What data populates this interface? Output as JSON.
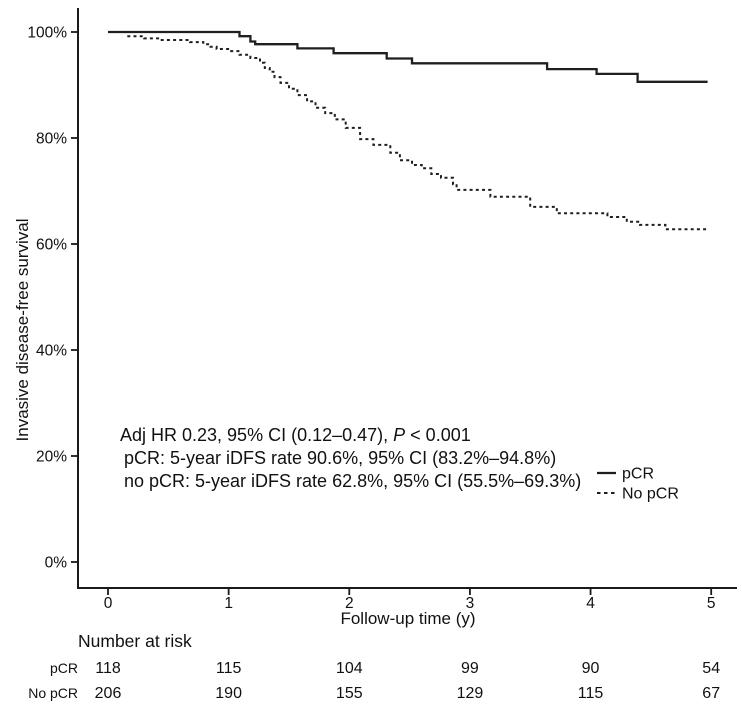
{
  "colors": {
    "ink": "#1a1a1a",
    "background": "#ffffff"
  },
  "chart_data": {
    "type": "line",
    "subtype": "kaplan-meier-step",
    "title": "",
    "xlabel": "Follow-up time (y)",
    "ylabel": "Invasive disease-free survival",
    "xlim": [
      0,
      5
    ],
    "ylim": [
      0,
      105
    ],
    "grid": false,
    "x_ticks": [
      0,
      1,
      2,
      3,
      4,
      5
    ],
    "y_ticks": [
      {
        "value": 0,
        "label": "0%"
      },
      {
        "value": 20,
        "label": "20%"
      },
      {
        "value": 40,
        "label": "40%"
      },
      {
        "value": 60,
        "label": "60%"
      },
      {
        "value": 80,
        "label": "80%"
      },
      {
        "value": 100,
        "label": "100%"
      }
    ],
    "series": [
      {
        "name": "pCR",
        "line_style": "solid",
        "color": "#1f1f1f",
        "five_year_rate": "90.6%",
        "steps": [
          [
            0,
            100
          ],
          [
            1.09,
            99.2
          ],
          [
            1.18,
            98.2
          ],
          [
            1.22,
            97.7
          ],
          [
            1.57,
            96.9
          ],
          [
            1.87,
            96.0
          ],
          [
            2.31,
            95.0
          ],
          [
            2.52,
            94.1
          ],
          [
            3.64,
            93.0
          ],
          [
            4.05,
            92.1
          ],
          [
            4.39,
            90.6
          ],
          [
            4.97,
            90.6
          ]
        ]
      },
      {
        "name": "No pCR",
        "line_style": "dashed",
        "color": "#1f1f1f",
        "five_year_rate": "62.8%",
        "steps": [
          [
            0.16,
            99.2
          ],
          [
            0.3,
            98.8
          ],
          [
            0.43,
            98.5
          ],
          [
            0.68,
            98.1
          ],
          [
            0.79,
            97.7
          ],
          [
            0.85,
            97.2
          ],
          [
            0.9,
            96.8
          ],
          [
            1.01,
            96.4
          ],
          [
            1.09,
            95.7
          ],
          [
            1.18,
            95.1
          ],
          [
            1.26,
            94.2
          ],
          [
            1.3,
            93.2
          ],
          [
            1.34,
            92.5
          ],
          [
            1.38,
            91.5
          ],
          [
            1.43,
            90.4
          ],
          [
            1.5,
            89.3
          ],
          [
            1.57,
            88.1
          ],
          [
            1.65,
            86.9
          ],
          [
            1.72,
            85.7
          ],
          [
            1.8,
            84.7
          ],
          [
            1.88,
            83.5
          ],
          [
            1.97,
            81.9
          ],
          [
            2.09,
            79.8
          ],
          [
            2.2,
            78.7
          ],
          [
            2.34,
            77.2
          ],
          [
            2.42,
            75.8
          ],
          [
            2.52,
            74.9
          ],
          [
            2.6,
            74.3
          ],
          [
            2.68,
            73.2
          ],
          [
            2.76,
            72.5
          ],
          [
            2.86,
            71.3
          ],
          [
            2.89,
            70.2
          ],
          [
            3.17,
            68.9
          ],
          [
            3.5,
            67.0
          ],
          [
            3.72,
            65.8
          ],
          [
            4.14,
            65.1
          ],
          [
            4.3,
            64.2
          ],
          [
            4.41,
            63.6
          ],
          [
            4.62,
            62.8
          ],
          [
            4.97,
            62.8
          ]
        ]
      }
    ],
    "legend": {
      "position": "right-middle",
      "entries": [
        {
          "label": "pCR",
          "style": "solid"
        },
        {
          "label": "No pCR",
          "style": "dashed"
        }
      ]
    },
    "annotations": {
      "lines": [
        {
          "pre": "Adj HR 0.23, 95% CI (0.12–0.47), ",
          "italic": "P",
          "post": " < 0.001"
        },
        {
          "pre": "pCR: 5-year iDFS rate 90.6%, 95% CI (83.2%–94.8%)",
          "italic": "",
          "post": ""
        },
        {
          "pre": "no pCR: 5-year iDFS rate 62.8%, 95% CI (55.5%–69.3%)",
          "italic": "",
          "post": ""
        }
      ]
    }
  },
  "risk_table": {
    "title": "Number at risk",
    "time_points": [
      0,
      1,
      2,
      3,
      4,
      5
    ],
    "rows": [
      {
        "label": "pCR",
        "values": [
          "118",
          "115",
          "104",
          "99",
          "90",
          "54"
        ]
      },
      {
        "label": "No pCR",
        "values": [
          "206",
          "190",
          "155",
          "129",
          "115",
          "67"
        ]
      }
    ]
  }
}
